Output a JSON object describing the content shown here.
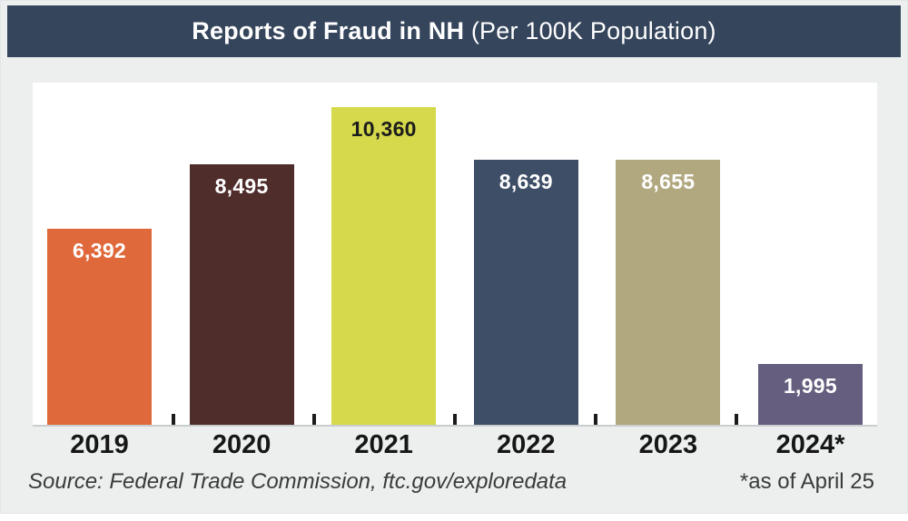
{
  "header": {
    "title_main": "Reports of Fraud in NH",
    "title_sub": " (Per 100K Population)",
    "bg_color": "#35455C",
    "text_color": "#FFFFFF"
  },
  "chart_data": {
    "type": "bar",
    "title": "Reports of Fraud in NH (Per 100K Population)",
    "categories": [
      "2019",
      "2020",
      "2021",
      "2022",
      "2023",
      "2024*"
    ],
    "values": [
      6392,
      8495,
      10360,
      8639,
      8655,
      1995
    ],
    "value_labels": [
      "6,392",
      "8,495",
      "10,360",
      "8,639",
      "8,655",
      "1,995"
    ],
    "bar_colors": [
      "#E0693B",
      "#4E2D2B",
      "#D5D94B",
      "#3D4E66",
      "#B2A880",
      "#655E7E"
    ],
    "value_label_colors": [
      "#FFFFFF",
      "#FFFFFF",
      "#1C1C1C",
      "#FFFFFF",
      "#FFFFFF",
      "#FFFFFF"
    ],
    "xlabel": "",
    "ylabel": "",
    "ylim": [
      0,
      11200
    ],
    "grid": false,
    "legend": false,
    "annotation": "*as of April 25"
  },
  "footer": {
    "source": "Source: Federal Trade Commission, ftc.gov/exploredata",
    "note": "*as of April 25"
  }
}
